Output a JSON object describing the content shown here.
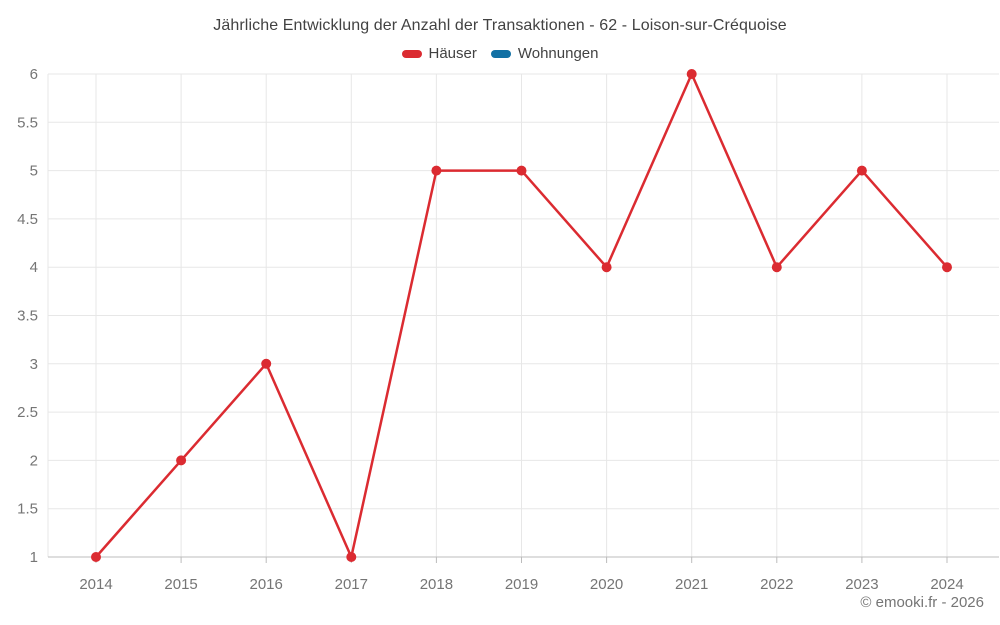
{
  "chart_data": {
    "type": "line",
    "title": "Jährliche Entwicklung der Anzahl der Transaktionen - 62 - Loison-sur-Créquoise",
    "categories": [
      "2014",
      "2015",
      "2016",
      "2017",
      "2018",
      "2019",
      "2020",
      "2021",
      "2022",
      "2023",
      "2024"
    ],
    "series": [
      {
        "name": "Häuser",
        "color": "#db2b31",
        "values": [
          1,
          2,
          3,
          1,
          5,
          5,
          4,
          6,
          4,
          5,
          4
        ]
      },
      {
        "name": "Wohnungen",
        "color": "#1170a4",
        "values": []
      }
    ],
    "xlabel": "",
    "ylabel": "",
    "ylim": [
      1,
      6
    ],
    "ytick_step": 0.5,
    "grid": true,
    "legend_position": "top",
    "colors": {
      "grid": "#e7e7e7",
      "axis": "#bcbcbc",
      "tick_label": "#757575",
      "title": "#424242"
    }
  },
  "footer": {
    "copyright": "© emooki.fr - 2026"
  }
}
